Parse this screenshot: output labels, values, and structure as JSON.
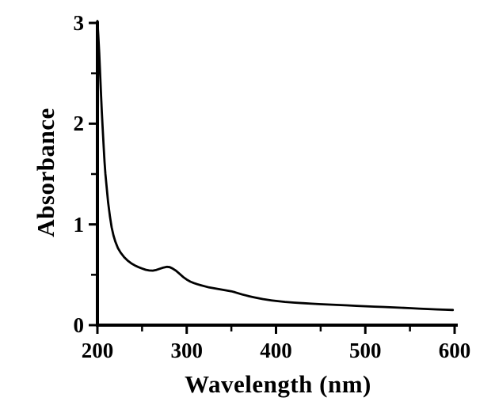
{
  "figure": {
    "background_color": "#ffffff",
    "ink_color": "#000000"
  },
  "chart_data": {
    "type": "line",
    "title": "",
    "xlabel": "Wavelength (nm)",
    "ylabel": "Absorbance",
    "xlim": [
      200,
      600
    ],
    "ylim": [
      0,
      3
    ],
    "xticks": [
      200,
      300,
      400,
      500,
      600
    ],
    "xticks_minor": [
      250,
      350,
      450,
      550
    ],
    "yticks": [
      0,
      1,
      2,
      3
    ],
    "yticks_minor": [
      0.5,
      1.5,
      2.5
    ],
    "grid": false,
    "legend": false,
    "line_color": "#000000",
    "axis_color": "#000000",
    "series": [
      {
        "name": "absorbance-spectrum",
        "points": [
          [
            200,
            3.02
          ],
          [
            201,
            2.88
          ],
          [
            202,
            2.7
          ],
          [
            203,
            2.5
          ],
          [
            204,
            2.3
          ],
          [
            205,
            2.11
          ],
          [
            206,
            1.93
          ],
          [
            207,
            1.77
          ],
          [
            208,
            1.62
          ],
          [
            209,
            1.5
          ],
          [
            210,
            1.4
          ],
          [
            212,
            1.22
          ],
          [
            214,
            1.08
          ],
          [
            216,
            0.97
          ],
          [
            218,
            0.89
          ],
          [
            220,
            0.83
          ],
          [
            223,
            0.765
          ],
          [
            226,
            0.72
          ],
          [
            230,
            0.675
          ],
          [
            234,
            0.64
          ],
          [
            238,
            0.613
          ],
          [
            242,
            0.592
          ],
          [
            246,
            0.576
          ],
          [
            250,
            0.562
          ],
          [
            254,
            0.55
          ],
          [
            258,
            0.543
          ],
          [
            262,
            0.541
          ],
          [
            266,
            0.548
          ],
          [
            270,
            0.56
          ],
          [
            274,
            0.572
          ],
          [
            278,
            0.579
          ],
          [
            281,
            0.576
          ],
          [
            284,
            0.563
          ],
          [
            288,
            0.54
          ],
          [
            292,
            0.51
          ],
          [
            296,
            0.478
          ],
          [
            300,
            0.452
          ],
          [
            304,
            0.432
          ],
          [
            308,
            0.418
          ],
          [
            312,
            0.406
          ],
          [
            316,
            0.396
          ],
          [
            320,
            0.386
          ],
          [
            325,
            0.375
          ],
          [
            330,
            0.367
          ],
          [
            335,
            0.359
          ],
          [
            340,
            0.351
          ],
          [
            345,
            0.344
          ],
          [
            350,
            0.336
          ],
          [
            354,
            0.327
          ],
          [
            358,
            0.316
          ],
          [
            362,
            0.305
          ],
          [
            366,
            0.296
          ],
          [
            370,
            0.287
          ],
          [
            375,
            0.277
          ],
          [
            380,
            0.268
          ],
          [
            385,
            0.259
          ],
          [
            390,
            0.252
          ],
          [
            395,
            0.246
          ],
          [
            400,
            0.24
          ],
          [
            410,
            0.231
          ],
          [
            420,
            0.224
          ],
          [
            430,
            0.218
          ],
          [
            440,
            0.213
          ],
          [
            450,
            0.208
          ],
          [
            460,
            0.204
          ],
          [
            470,
            0.2
          ],
          [
            480,
            0.196
          ],
          [
            490,
            0.192
          ],
          [
            500,
            0.188
          ],
          [
            510,
            0.184
          ],
          [
            520,
            0.181
          ],
          [
            530,
            0.177
          ],
          [
            540,
            0.173
          ],
          [
            550,
            0.169
          ],
          [
            560,
            0.164
          ],
          [
            570,
            0.16
          ],
          [
            580,
            0.156
          ],
          [
            590,
            0.153
          ],
          [
            598,
            0.151
          ]
        ]
      }
    ]
  }
}
